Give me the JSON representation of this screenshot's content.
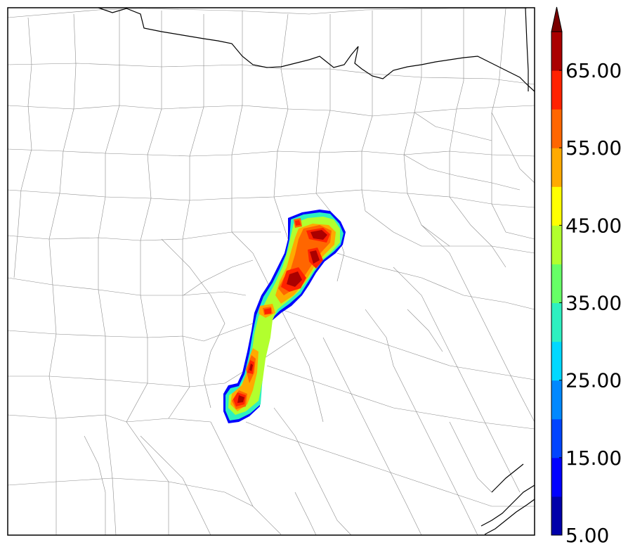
{
  "colorbar": {
    "labels": [
      "5.00",
      "15.00",
      "25.00",
      "35.00",
      "45.00",
      "55.00",
      "65.00"
    ],
    "levels_min": 5,
    "levels_max": 70,
    "level_step": 5,
    "extend": "max",
    "colors": [
      "#0000aa",
      "#0000ff",
      "#0044ff",
      "#0088ff",
      "#00d8ff",
      "#2ef0c0",
      "#66ff66",
      "#b2ff2e",
      "#ffff00",
      "#ffaa00",
      "#ff6600",
      "#ff2200",
      "#aa0000",
      "#7a0000"
    ]
  },
  "map": {
    "features": [
      "county-boundaries",
      "state-boundaries",
      "coastline"
    ],
    "field": "radar-reflectivity"
  }
}
